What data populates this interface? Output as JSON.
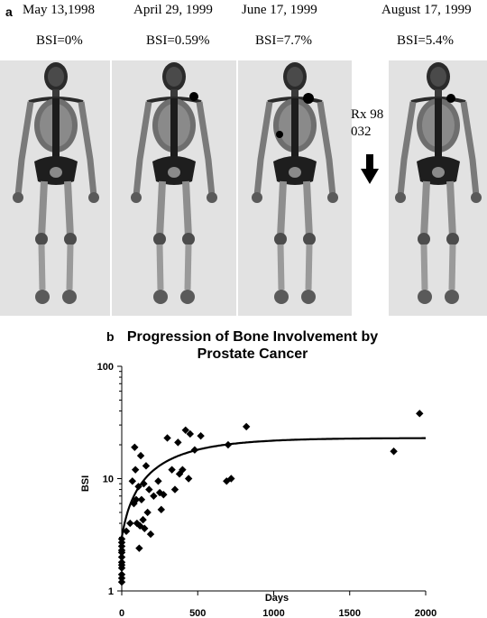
{
  "panel_a": {
    "letter": "a",
    "scans": [
      {
        "date": "May 13,1998",
        "bsi": "BSI=0%"
      },
      {
        "date": "April 29, 1999",
        "bsi": "BSI=0.59%"
      },
      {
        "date": "June 17, 1999",
        "bsi": "BSI=7.7%"
      },
      {
        "date": "August 17, 1999",
        "bsi": "BSI=5.4%"
      }
    ],
    "treatment": {
      "line1": "Rx 98",
      "line2": "032",
      "arrow_icon": "down-arrow-icon"
    }
  },
  "panel_b": {
    "letter": "b"
  },
  "chart_data": {
    "type": "scatter",
    "title": "Progression of Bone Involvement by Prostate Cancer",
    "title_lines": [
      "Progression of Bone Involvement by",
      "Prostate Cancer"
    ],
    "xlabel": "Days",
    "ylabel": "BSI",
    "xlim": [
      0,
      2000
    ],
    "ylim": [
      1,
      100
    ],
    "y_scale": "log",
    "x_ticks": [
      0,
      500,
      1000,
      1500,
      2000
    ],
    "y_ticks": [
      1,
      10,
      100
    ],
    "grid": false,
    "points": [
      [
        0,
        1.2
      ],
      [
        0,
        1.3
      ],
      [
        0,
        1.4
      ],
      [
        0,
        1.6
      ],
      [
        0,
        1.7
      ],
      [
        0,
        1.8
      ],
      [
        0,
        2.0
      ],
      [
        0,
        2.2
      ],
      [
        0,
        2.3
      ],
      [
        0,
        2.5
      ],
      [
        0,
        2.7
      ],
      [
        0,
        2.9
      ],
      [
        30,
        3.4
      ],
      [
        55,
        4.0
      ],
      [
        70,
        9.5
      ],
      [
        80,
        6.0
      ],
      [
        85,
        19.0
      ],
      [
        90,
        12.0
      ],
      [
        95,
        6.5
      ],
      [
        100,
        4.0
      ],
      [
        110,
        8.5
      ],
      [
        115,
        2.4
      ],
      [
        120,
        3.8
      ],
      [
        125,
        16.0
      ],
      [
        130,
        6.5
      ],
      [
        140,
        4.3
      ],
      [
        145,
        9.0
      ],
      [
        150,
        3.6
      ],
      [
        160,
        13.0
      ],
      [
        170,
        5.0
      ],
      [
        180,
        8.0
      ],
      [
        190,
        3.2
      ],
      [
        210,
        7.0
      ],
      [
        240,
        9.5
      ],
      [
        250,
        7.5
      ],
      [
        260,
        5.3
      ],
      [
        275,
        7.2
      ],
      [
        300,
        23.0
      ],
      [
        330,
        12.0
      ],
      [
        350,
        8.0
      ],
      [
        370,
        21.0
      ],
      [
        380,
        11.0
      ],
      [
        400,
        12.0
      ],
      [
        420,
        27.0
      ],
      [
        440,
        10.0
      ],
      [
        450,
        25.0
      ],
      [
        480,
        18.0
      ],
      [
        520,
        24.0
      ],
      [
        690,
        9.5
      ],
      [
        700,
        20.0
      ],
      [
        720,
        10.0
      ],
      [
        820,
        29.0
      ],
      [
        1790,
        17.5
      ],
      [
        1960,
        38.0
      ]
    ],
    "fit_curve": {
      "type": "exponential-saturation",
      "y0": 3.0,
      "ymax": 23.0,
      "k": 0.0028
    }
  }
}
